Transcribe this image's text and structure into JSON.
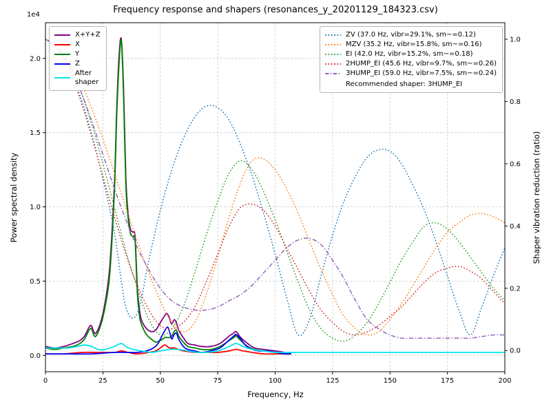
{
  "title": "Frequency response and shapers (resonances_y_20201129_184323.csv)",
  "axes": {
    "x": {
      "label": "Frequency, Hz",
      "ticks": [
        0,
        25,
        50,
        75,
        100,
        125,
        150,
        175,
        200
      ]
    },
    "y_left": {
      "label": "Power spectral density",
      "offset_text": "1e4",
      "tick_labels": [
        "0.0",
        "0.5",
        "1.0",
        "1.5",
        "2.0"
      ],
      "tick_values": [
        0,
        0.5,
        1.0,
        1.5,
        2.0
      ]
    },
    "y_right": {
      "label": "Shaper vibration reduction (ratio)",
      "tick_labels": [
        "0.0",
        "0.2",
        "0.4",
        "0.6",
        "0.8",
        "1.0"
      ],
      "tick_values": [
        0,
        0.2,
        0.4,
        0.6,
        0.8,
        1.0
      ]
    }
  },
  "legend_left": {
    "items": [
      {
        "label": "X+Y+Z",
        "color": "#800080",
        "style": "solid"
      },
      {
        "label": "X",
        "color": "#ff0000",
        "style": "solid"
      },
      {
        "label": "Y",
        "color": "#008000",
        "style": "solid"
      },
      {
        "label": "Z",
        "color": "#0000ff",
        "style": "solid"
      },
      {
        "label": "After\nshaper",
        "color": "#00e5ee",
        "style": "solid"
      }
    ]
  },
  "legend_right": {
    "items": [
      {
        "label": "ZV (37.0 Hz, vibr=29.1%, sm~=0.12)",
        "color": "#1f77b4",
        "style": "dotted"
      },
      {
        "label": "MZV (35.2 Hz, vibr=15.8%, sm~=0.16)",
        "color": "#ff7f0e",
        "style": "dotted"
      },
      {
        "label": "EI (42.0 Hz, vibr=15.2%, sm~=0.18)",
        "color": "#2ca02c",
        "style": "dotted"
      },
      {
        "label": "2HUMP_EI (45.6 Hz, vibr=9.7%, sm~=0.26)",
        "color": "#d62728",
        "style": "dotted"
      },
      {
        "label": "3HUMP_EI (59.0 Hz, vibr=7.5%, sm~=0.24)",
        "color": "#9467bd",
        "style": "dashdot"
      }
    ],
    "note": "Recommended shaper: 3HUMP_EI"
  },
  "chart_data": {
    "type": "line",
    "title": "Frequency response and shapers (resonances_y_20201129_184323.csv)",
    "xlabel": "Frequency, Hz",
    "ylabel_left": "Power spectral density (x1e4)",
    "ylabel_right": "Shaper vibration reduction (ratio)",
    "xlim": [
      0,
      200
    ],
    "ylim_left": [
      -0.11,
      2.24
    ],
    "ylim_right": [
      -0.068,
      1.053
    ],
    "grid": true,
    "psd_series": [
      {
        "name": "X+Y+Z",
        "color": "#800080",
        "x": [
          0,
          4,
          8,
          12,
          15,
          17,
          19,
          20,
          21,
          22,
          24,
          26,
          28,
          30,
          31,
          32,
          33,
          34,
          35,
          36,
          37,
          38,
          39,
          40,
          41,
          42,
          44,
          46,
          48,
          50,
          52,
          53,
          54,
          55,
          56,
          57,
          58,
          60,
          62,
          65,
          68,
          72,
          76,
          80,
          82,
          83,
          85,
          88,
          91,
          95,
          100,
          104,
          107
        ],
        "y": [
          0.06,
          0.05,
          0.06,
          0.08,
          0.1,
          0.13,
          0.19,
          0.2,
          0.16,
          0.15,
          0.22,
          0.36,
          0.6,
          1.15,
          1.65,
          2.0,
          2.13,
          1.8,
          1.2,
          0.95,
          0.85,
          0.83,
          0.8,
          0.46,
          0.3,
          0.23,
          0.18,
          0.16,
          0.17,
          0.22,
          0.27,
          0.28,
          0.25,
          0.21,
          0.24,
          0.22,
          0.17,
          0.12,
          0.08,
          0.07,
          0.06,
          0.06,
          0.08,
          0.13,
          0.15,
          0.16,
          0.12,
          0.08,
          0.05,
          0.04,
          0.03,
          0.02,
          0.01
        ]
      },
      {
        "name": "X",
        "color": "#ff0000",
        "x": [
          0,
          8,
          16,
          24,
          30,
          33,
          36,
          40,
          45,
          48,
          50,
          52,
          54,
          56,
          58,
          60,
          65,
          70,
          75,
          80,
          83,
          86,
          90,
          95,
          100,
          104,
          107
        ],
        "y": [
          0.01,
          0.01,
          0.02,
          0.02,
          0.02,
          0.03,
          0.02,
          0.01,
          0.02,
          0.03,
          0.05,
          0.07,
          0.05,
          0.05,
          0.04,
          0.03,
          0.02,
          0.02,
          0.02,
          0.03,
          0.04,
          0.03,
          0.02,
          0.01,
          0.01,
          0.01,
          0.01
        ]
      },
      {
        "name": "Y",
        "color": "#008000",
        "x": [
          0,
          4,
          8,
          12,
          15,
          17,
          19,
          20,
          21,
          22,
          24,
          26,
          28,
          30,
          31,
          32,
          33,
          34,
          35,
          36,
          37,
          38,
          39,
          40,
          41,
          42,
          44,
          46,
          48,
          50,
          52,
          53,
          54,
          55,
          56,
          57,
          58,
          60,
          62,
          65,
          68,
          72,
          76,
          80,
          82,
          83,
          85,
          88,
          91,
          95,
          100,
          104,
          107
        ],
        "y": [
          0.05,
          0.04,
          0.05,
          0.06,
          0.08,
          0.11,
          0.17,
          0.18,
          0.14,
          0.13,
          0.2,
          0.33,
          0.55,
          1.1,
          1.6,
          1.95,
          2.12,
          1.75,
          1.15,
          0.92,
          0.82,
          0.8,
          0.77,
          0.42,
          0.26,
          0.2,
          0.14,
          0.11,
          0.09,
          0.1,
          0.12,
          0.12,
          0.12,
          0.13,
          0.16,
          0.17,
          0.13,
          0.09,
          0.06,
          0.05,
          0.04,
          0.04,
          0.06,
          0.1,
          0.12,
          0.13,
          0.1,
          0.06,
          0.04,
          0.03,
          0.02,
          0.01,
          0.01
        ]
      },
      {
        "name": "Z",
        "color": "#0000ff",
        "x": [
          0,
          10,
          20,
          30,
          35,
          40,
          44,
          47,
          49,
          51,
          53,
          54,
          55,
          56,
          57,
          58,
          60,
          62,
          65,
          68,
          72,
          76,
          79,
          82,
          83,
          85,
          87,
          90,
          93,
          96,
          100,
          104,
          107
        ],
        "y": [
          0.01,
          0.01,
          0.01,
          0.02,
          0.02,
          0.02,
          0.03,
          0.05,
          0.08,
          0.14,
          0.19,
          0.16,
          0.11,
          0.14,
          0.15,
          0.11,
          0.06,
          0.04,
          0.03,
          0.02,
          0.03,
          0.05,
          0.09,
          0.13,
          0.14,
          0.11,
          0.07,
          0.04,
          0.03,
          0.03,
          0.02,
          0.01,
          0.01
        ]
      },
      {
        "name": "After shaper",
        "color": "#00e5ee",
        "x": [
          0,
          5,
          10,
          14,
          17,
          20,
          23,
          26,
          30,
          33,
          35,
          38,
          42,
          46,
          50,
          54,
          58,
          62,
          66,
          70,
          75,
          80,
          83,
          86,
          90,
          95,
          100,
          110,
          125,
          150,
          175,
          200
        ],
        "y": [
          0.05,
          0.05,
          0.05,
          0.06,
          0.07,
          0.06,
          0.04,
          0.04,
          0.06,
          0.08,
          0.06,
          0.04,
          0.03,
          0.02,
          0.03,
          0.04,
          0.04,
          0.03,
          0.02,
          0.02,
          0.03,
          0.06,
          0.08,
          0.06,
          0.04,
          0.03,
          0.02,
          0.02,
          0.02,
          0.02,
          0.02,
          0.02
        ]
      }
    ],
    "shaper_x": [
      0,
      5,
      10,
      15,
      20,
      25,
      30,
      35,
      40,
      45,
      50,
      55,
      60,
      65,
      70,
      75,
      80,
      85,
      90,
      95,
      100,
      105,
      110,
      115,
      120,
      125,
      130,
      135,
      140,
      145,
      150,
      155,
      160,
      165,
      170,
      175,
      180,
      185,
      190,
      195,
      200
    ],
    "shaper_series": [
      {
        "name": "ZV",
        "freq_hz": 37.0,
        "vibr_pct": 29.1,
        "smoothing": 0.12,
        "color": "#1f77b4",
        "style": "dotted",
        "y": [
          1.0,
          0.97,
          0.91,
          0.82,
          0.7,
          0.55,
          0.38,
          0.14,
          0.12,
          0.29,
          0.45,
          0.58,
          0.68,
          0.75,
          0.785,
          0.78,
          0.74,
          0.66,
          0.56,
          0.44,
          0.31,
          0.17,
          0.05,
          0.1,
          0.24,
          0.37,
          0.48,
          0.56,
          0.62,
          0.645,
          0.64,
          0.6,
          0.53,
          0.45,
          0.35,
          0.24,
          0.13,
          0.05,
          0.14,
          0.24,
          0.33
        ]
      },
      {
        "name": "MZV",
        "freq_hz": 35.2,
        "vibr_pct": 15.8,
        "smoothing": 0.16,
        "color": "#ff7f0e",
        "style": "dotted",
        "y": [
          1.0,
          0.98,
          0.94,
          0.87,
          0.78,
          0.68,
          0.57,
          0.46,
          0.35,
          0.25,
          0.16,
          0.09,
          0.06,
          0.09,
          0.18,
          0.3,
          0.43,
          0.54,
          0.61,
          0.615,
          0.58,
          0.52,
          0.44,
          0.35,
          0.26,
          0.18,
          0.11,
          0.07,
          0.05,
          0.06,
          0.1,
          0.15,
          0.21,
          0.27,
          0.33,
          0.38,
          0.41,
          0.435,
          0.44,
          0.43,
          0.41
        ]
      },
      {
        "name": "EI",
        "freq_hz": 42.0,
        "vibr_pct": 15.2,
        "smoothing": 0.18,
        "color": "#2ca02c",
        "style": "dotted",
        "y": [
          1.0,
          0.98,
          0.93,
          0.84,
          0.73,
          0.6,
          0.46,
          0.32,
          0.2,
          0.1,
          0.05,
          0.07,
          0.14,
          0.25,
          0.37,
          0.48,
          0.57,
          0.61,
          0.58,
          0.51,
          0.42,
          0.32,
          0.22,
          0.13,
          0.07,
          0.04,
          0.03,
          0.05,
          0.09,
          0.15,
          0.22,
          0.29,
          0.35,
          0.4,
          0.41,
          0.39,
          0.35,
          0.3,
          0.25,
          0.2,
          0.16
        ]
      },
      {
        "name": "2HUMP_EI",
        "freq_hz": 45.6,
        "vibr_pct": 9.7,
        "smoothing": 0.26,
        "color": "#d62728",
        "style": "dotted",
        "y": [
          1.0,
          0.97,
          0.91,
          0.81,
          0.69,
          0.56,
          0.43,
          0.31,
          0.21,
          0.13,
          0.08,
          0.07,
          0.09,
          0.14,
          0.22,
          0.31,
          0.4,
          0.46,
          0.47,
          0.45,
          0.4,
          0.33,
          0.26,
          0.19,
          0.13,
          0.09,
          0.06,
          0.05,
          0.06,
          0.08,
          0.11,
          0.14,
          0.18,
          0.22,
          0.25,
          0.265,
          0.27,
          0.255,
          0.23,
          0.19,
          0.15
        ]
      },
      {
        "name": "3HUMP_EI",
        "freq_hz": 59.0,
        "vibr_pct": 7.5,
        "smoothing": 0.24,
        "color": "#9467bd",
        "style": "dashdot",
        "y": [
          1.0,
          0.975,
          0.92,
          0.84,
          0.74,
          0.63,
          0.52,
          0.42,
          0.33,
          0.26,
          0.2,
          0.16,
          0.14,
          0.13,
          0.13,
          0.14,
          0.16,
          0.18,
          0.21,
          0.25,
          0.29,
          0.33,
          0.355,
          0.36,
          0.34,
          0.29,
          0.23,
          0.16,
          0.1,
          0.07,
          0.05,
          0.04,
          0.04,
          0.04,
          0.04,
          0.04,
          0.04,
          0.04,
          0.045,
          0.05,
          0.05
        ]
      }
    ],
    "recommended_shaper": "3HUMP_EI"
  }
}
